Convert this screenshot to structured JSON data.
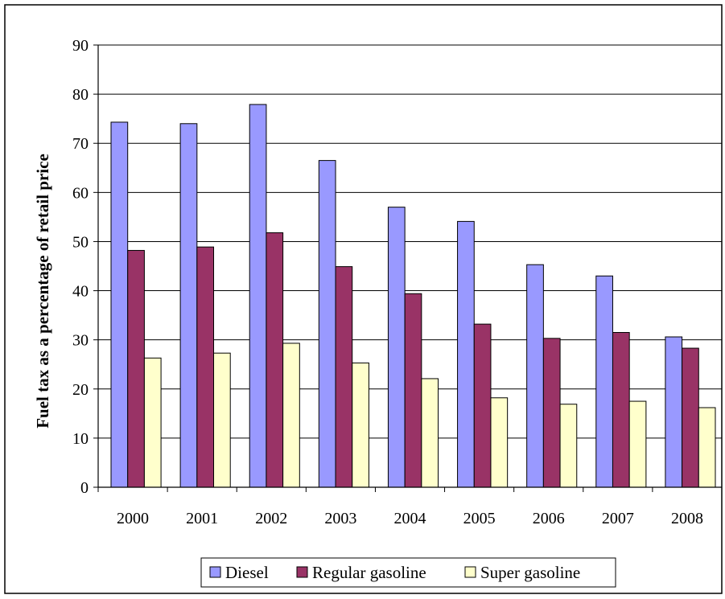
{
  "chart_data": {
    "type": "bar",
    "title": "",
    "xlabel": "",
    "ylabel": "Fuel tax as a percentage of retail price",
    "ylim": [
      0,
      90
    ],
    "yticks": [
      0,
      10,
      20,
      30,
      40,
      50,
      60,
      70,
      80,
      90
    ],
    "grid": true,
    "legend_position": "bottom",
    "categories": [
      "2000",
      "2001",
      "2002",
      "2003",
      "2004",
      "2005",
      "2006",
      "2007",
      "2008"
    ],
    "series": [
      {
        "name": "Diesel",
        "color": "#9999ff",
        "values": [
          74.3,
          74.0,
          77.9,
          66.5,
          57.0,
          54.1,
          45.3,
          43.0,
          30.6
        ]
      },
      {
        "name": "Regular gasoline",
        "color": "#993366",
        "values": [
          48.2,
          48.9,
          51.8,
          44.9,
          39.4,
          33.2,
          30.3,
          31.5,
          28.3
        ]
      },
      {
        "name": "Super gasoline",
        "color": "#ffffcc",
        "values": [
          26.3,
          27.3,
          29.3,
          25.3,
          22.1,
          18.2,
          16.9,
          17.5,
          16.2
        ]
      }
    ]
  }
}
